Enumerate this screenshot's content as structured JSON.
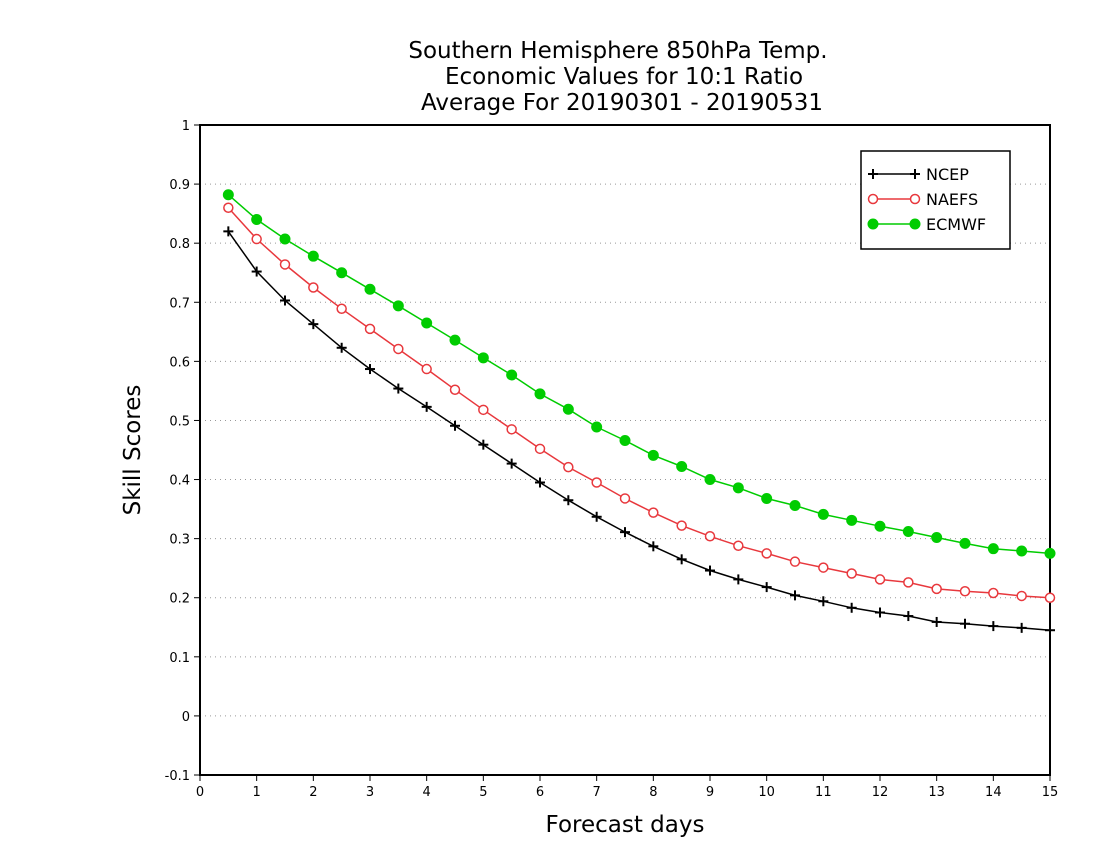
{
  "chart_data": {
    "type": "line",
    "title": [
      "Southern Hemisphere 850hPa Temp.",
      "Economic Values for 10:1 Ratio",
      "Average For 20190301 - 20190531"
    ],
    "xlabel": "Forecast days",
    "ylabel": "Skill Scores",
    "xlim": [
      0,
      15
    ],
    "ylim": [
      -0.1,
      1
    ],
    "xticks": [
      "0",
      "1",
      "2",
      "3",
      "4",
      "5",
      "6",
      "7",
      "8",
      "9",
      "10",
      "11",
      "12",
      "13",
      "14",
      "15"
    ],
    "yticks": [
      "-0.1",
      "0",
      "0.1",
      "0.2",
      "0.3",
      "0.4",
      "0.5",
      "0.6",
      "0.7",
      "0.8",
      "0.9",
      "1"
    ],
    "grid": "horizontal dotted",
    "legend_position": "top-right",
    "x": [
      0.5,
      1,
      1.5,
      2,
      2.5,
      3,
      3.5,
      4,
      4.5,
      5,
      5.5,
      6,
      6.5,
      7,
      7.5,
      8,
      8.5,
      9,
      9.5,
      10,
      10.5,
      11,
      11.5,
      12,
      12.5,
      13,
      13.5,
      14,
      14.5,
      15
    ],
    "series": [
      {
        "name": "NCEP",
        "color": "#000000",
        "marker": "plus",
        "values": [
          0.82,
          0.752,
          0.703,
          0.663,
          0.623,
          0.587,
          0.554,
          0.523,
          0.491,
          0.459,
          0.427,
          0.395,
          0.365,
          0.337,
          0.311,
          0.287,
          0.265,
          0.246,
          0.231,
          0.218,
          0.204,
          0.194,
          0.183,
          0.175,
          0.169,
          0.159,
          0.156,
          0.152,
          0.149,
          0.145
        ]
      },
      {
        "name": "NAEFS",
        "color": "#e8383d",
        "marker": "open-circle",
        "values": [
          0.86,
          0.807,
          0.764,
          0.725,
          0.689,
          0.655,
          0.621,
          0.587,
          0.552,
          0.518,
          0.485,
          0.452,
          0.421,
          0.395,
          0.368,
          0.344,
          0.322,
          0.304,
          0.288,
          0.275,
          0.261,
          0.251,
          0.241,
          0.231,
          0.226,
          0.215,
          0.211,
          0.208,
          0.203,
          0.2
        ]
      },
      {
        "name": "ECMWF",
        "color": "#00cc00",
        "marker": "filled-circle",
        "values": [
          0.882,
          0.84,
          0.807,
          0.778,
          0.75,
          0.722,
          0.694,
          0.665,
          0.636,
          0.606,
          0.577,
          0.545,
          0.519,
          0.489,
          0.466,
          0.441,
          0.422,
          0.4,
          0.386,
          0.368,
          0.356,
          0.341,
          0.331,
          0.321,
          0.312,
          0.302,
          0.292,
          0.283,
          0.279,
          0.275
        ]
      }
    ]
  }
}
